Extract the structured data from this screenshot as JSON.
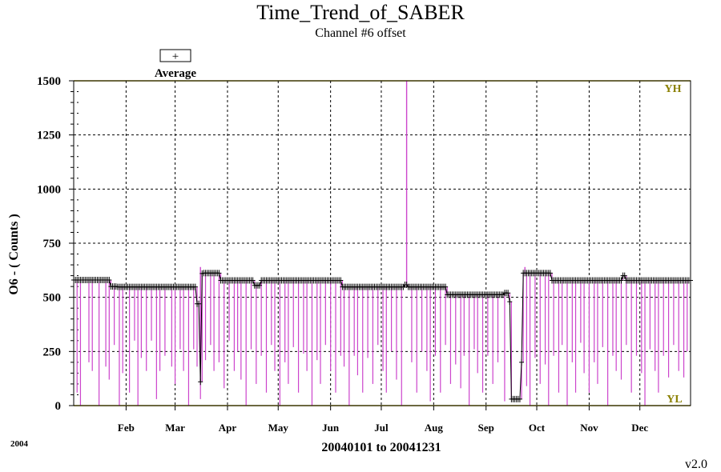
{
  "chart_data": {
    "type": "line",
    "title": "Time_Trend_of_SABER",
    "subtitle": "Channel #6 offset",
    "ylabel": "O6  -  ( Counts )",
    "xlabel": "20040101 to 20041231",
    "ylim": [
      0,
      1500
    ],
    "yticks": [
      0,
      250,
      500,
      750,
      1000,
      1250,
      1500
    ],
    "ytick_labels": [
      "0",
      "250",
      "500",
      "750",
      "1000",
      "1250",
      "1500"
    ],
    "xlim": [
      1,
      366
    ],
    "month_ticks": [
      {
        "day": 32,
        "label": "Feb"
      },
      {
        "day": 61,
        "label": "Mar"
      },
      {
        "day": 92,
        "label": "Apr"
      },
      {
        "day": 122,
        "label": "May"
      },
      {
        "day": 153,
        "label": "Jun"
      },
      {
        "day": 183,
        "label": "Jul"
      },
      {
        "day": 214,
        "label": "Aug"
      },
      {
        "day": 245,
        "label": "Sep"
      },
      {
        "day": 275,
        "label": "Oct"
      },
      {
        "day": 306,
        "label": "Nov"
      },
      {
        "day": 336,
        "label": "Dec"
      }
    ],
    "limit_labels": {
      "high": "YH",
      "low": "YL"
    },
    "yh": 1500,
    "yl": 0,
    "grid": true,
    "legend": {
      "symbol": "+",
      "label": "Average",
      "position": "top-left"
    },
    "year_label": "2004",
    "version_label": "v2.0",
    "series": [
      {
        "name": "Average",
        "style": "plus-markers",
        "segments": [
          {
            "from": 1,
            "to": 23,
            "value": 580
          },
          {
            "from": 23,
            "to": 27,
            "value": 550
          },
          {
            "from": 27,
            "to": 74,
            "value": 548
          },
          {
            "from": 74,
            "to": 76,
            "value": 470
          },
          {
            "from": 76,
            "to": 77,
            "value": 110
          },
          {
            "from": 77,
            "to": 78,
            "value": 610
          },
          {
            "from": 78,
            "to": 88,
            "value": 612
          },
          {
            "from": 88,
            "to": 108,
            "value": 578
          },
          {
            "from": 108,
            "to": 112,
            "value": 555
          },
          {
            "from": 112,
            "to": 160,
            "value": 578
          },
          {
            "from": 160,
            "to": 166,
            "value": 548
          },
          {
            "from": 166,
            "to": 197,
            "value": 548
          },
          {
            "from": 197,
            "to": 199,
            "value": 558
          },
          {
            "from": 199,
            "to": 222,
            "value": 548
          },
          {
            "from": 222,
            "to": 226,
            "value": 512
          },
          {
            "from": 226,
            "to": 256,
            "value": 512
          },
          {
            "from": 256,
            "to": 259,
            "value": 520
          },
          {
            "from": 259,
            "to": 260,
            "value": 480
          },
          {
            "from": 260,
            "to": 266,
            "value": 30
          },
          {
            "from": 266,
            "to": 267,
            "value": 200
          },
          {
            "from": 267,
            "to": 284,
            "value": 612
          },
          {
            "from": 284,
            "to": 326,
            "value": 578
          },
          {
            "from": 326,
            "to": 328,
            "value": 600
          },
          {
            "from": 328,
            "to": 366,
            "value": 578
          }
        ]
      },
      {
        "name": "",
        "color": "#cc44cc",
        "style": "vertical-lines",
        "dips": [
          [
            3,
            60
          ],
          [
            5,
            0
          ],
          [
            10,
            200
          ],
          [
            12,
            160
          ],
          [
            16,
            0
          ],
          [
            20,
            180
          ],
          [
            22,
            120
          ],
          [
            25,
            280
          ],
          [
            28,
            0
          ],
          [
            30,
            150
          ],
          [
            34,
            60
          ],
          [
            37,
            300
          ],
          [
            39,
            0
          ],
          [
            41,
            220
          ],
          [
            44,
            160
          ],
          [
            47,
            300
          ],
          [
            50,
            30
          ],
          [
            52,
            160
          ],
          [
            55,
            230
          ],
          [
            59,
            180
          ],
          [
            61,
            100
          ],
          [
            64,
            260
          ],
          [
            66,
            160
          ],
          [
            69,
            0
          ],
          [
            72,
            260
          ],
          [
            74,
            180
          ],
          [
            76,
            30
          ],
          [
            79,
            210
          ],
          [
            82,
            280
          ],
          [
            84,
            160
          ],
          [
            87,
            200
          ],
          [
            90,
            80
          ],
          [
            93,
            300
          ],
          [
            96,
            160
          ],
          [
            98,
            250
          ],
          [
            100,
            120
          ],
          [
            103,
            0
          ],
          [
            106,
            260
          ],
          [
            109,
            100
          ],
          [
            112,
            230
          ],
          [
            115,
            60
          ],
          [
            118,
            280
          ],
          [
            120,
            160
          ],
          [
            123,
            0
          ],
          [
            126,
            200
          ],
          [
            128,
            100
          ],
          [
            131,
            270
          ],
          [
            134,
            60
          ],
          [
            137,
            240
          ],
          [
            139,
            160
          ],
          [
            142,
            0
          ],
          [
            145,
            210
          ],
          [
            147,
            100
          ],
          [
            150,
            280
          ],
          [
            153,
            160
          ],
          [
            156,
            60
          ],
          [
            159,
            230
          ],
          [
            161,
            180
          ],
          [
            164,
            0
          ],
          [
            167,
            230
          ],
          [
            169,
            140
          ],
          [
            172,
            60
          ],
          [
            175,
            220
          ],
          [
            178,
            100
          ],
          [
            181,
            280
          ],
          [
            184,
            160
          ],
          [
            186,
            60
          ],
          [
            189,
            250
          ],
          [
            192,
            120
          ],
          [
            195,
            0
          ],
          [
            201,
            200
          ],
          [
            204,
            60
          ],
          [
            207,
            250
          ],
          [
            210,
            160
          ],
          [
            212,
            20
          ],
          [
            215,
            230
          ],
          [
            218,
            60
          ],
          [
            221,
            280
          ],
          [
            224,
            100
          ],
          [
            227,
            190
          ],
          [
            230,
            80
          ],
          [
            232,
            230
          ],
          [
            235,
            0
          ],
          [
            238,
            260
          ],
          [
            240,
            150
          ],
          [
            243,
            60
          ],
          [
            246,
            230
          ],
          [
            249,
            100
          ],
          [
            252,
            200
          ],
          [
            256,
            20
          ],
          [
            269,
            90
          ],
          [
            271,
            0
          ],
          [
            274,
            220
          ],
          [
            277,
            100
          ],
          [
            280,
            190
          ],
          [
            282,
            0
          ],
          [
            285,
            230
          ],
          [
            288,
            60
          ],
          [
            290,
            280
          ],
          [
            293,
            0
          ],
          [
            296,
            200
          ],
          [
            298,
            60
          ],
          [
            301,
            290
          ],
          [
            303,
            150
          ],
          [
            306,
            60
          ],
          [
            309,
            200
          ],
          [
            311,
            100
          ],
          [
            314,
            270
          ],
          [
            317,
            0
          ],
          [
            320,
            230
          ],
          [
            322,
            160
          ],
          [
            325,
            120
          ],
          [
            328,
            280
          ],
          [
            331,
            60
          ],
          [
            334,
            230
          ],
          [
            337,
            150
          ],
          [
            339,
            0
          ],
          [
            342,
            260
          ],
          [
            345,
            160
          ],
          [
            347,
            60
          ],
          [
            350,
            230
          ],
          [
            353,
            130
          ],
          [
            356,
            280
          ],
          [
            359,
            160
          ],
          [
            362,
            130
          ],
          [
            364,
            250
          ]
        ],
        "spikes": [
          [
            76,
            640
          ],
          [
            198,
            1500
          ],
          [
            268,
            640
          ]
        ]
      }
    ]
  }
}
